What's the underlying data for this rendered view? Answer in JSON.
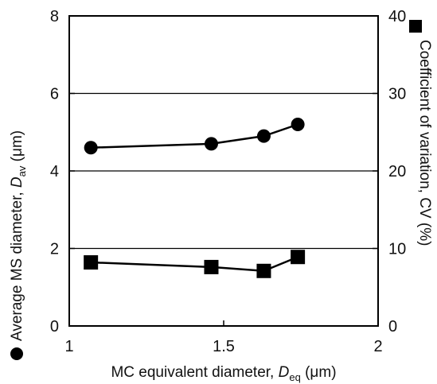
{
  "chart_data": {
    "type": "scatter",
    "title": "",
    "xlabel": {
      "pre": "MC equivalent diameter, ",
      "symbol": "D",
      "sub": "eq",
      "post": " (μm)"
    },
    "ylabel_left": {
      "pre": "Average MS diameter, ",
      "symbol": "D",
      "sub": "av",
      "post": " (μm)"
    },
    "ylabel_right": "Coefficient of variation, CV (%)",
    "xlim": [
      1,
      2
    ],
    "ylim_left": [
      0,
      8
    ],
    "ylim_right": [
      0,
      40
    ],
    "x_ticks": [
      "1",
      "1.5",
      "2"
    ],
    "x_tick_values": [
      1,
      1.5,
      2
    ],
    "y_left_ticks": [
      "0",
      "2",
      "4",
      "6",
      "8"
    ],
    "y_left_tick_values": [
      0,
      2,
      4,
      6,
      8
    ],
    "y_right_ticks": [
      "0",
      "10",
      "20",
      "30",
      "40"
    ],
    "y_right_tick_values": [
      0,
      10,
      20,
      30,
      40
    ],
    "grid": "horizontal",
    "series": [
      {
        "marker": "circle",
        "axis": "left",
        "color": "#000000",
        "x": [
          1.07,
          1.46,
          1.63,
          1.74
        ],
        "y": [
          4.6,
          4.7,
          4.9,
          5.2
        ]
      },
      {
        "marker": "square",
        "axis": "right",
        "color": "#000000",
        "x": [
          1.07,
          1.46,
          1.63,
          1.74
        ],
        "y": [
          8.2,
          7.6,
          7.1,
          8.9
        ]
      }
    ]
  }
}
